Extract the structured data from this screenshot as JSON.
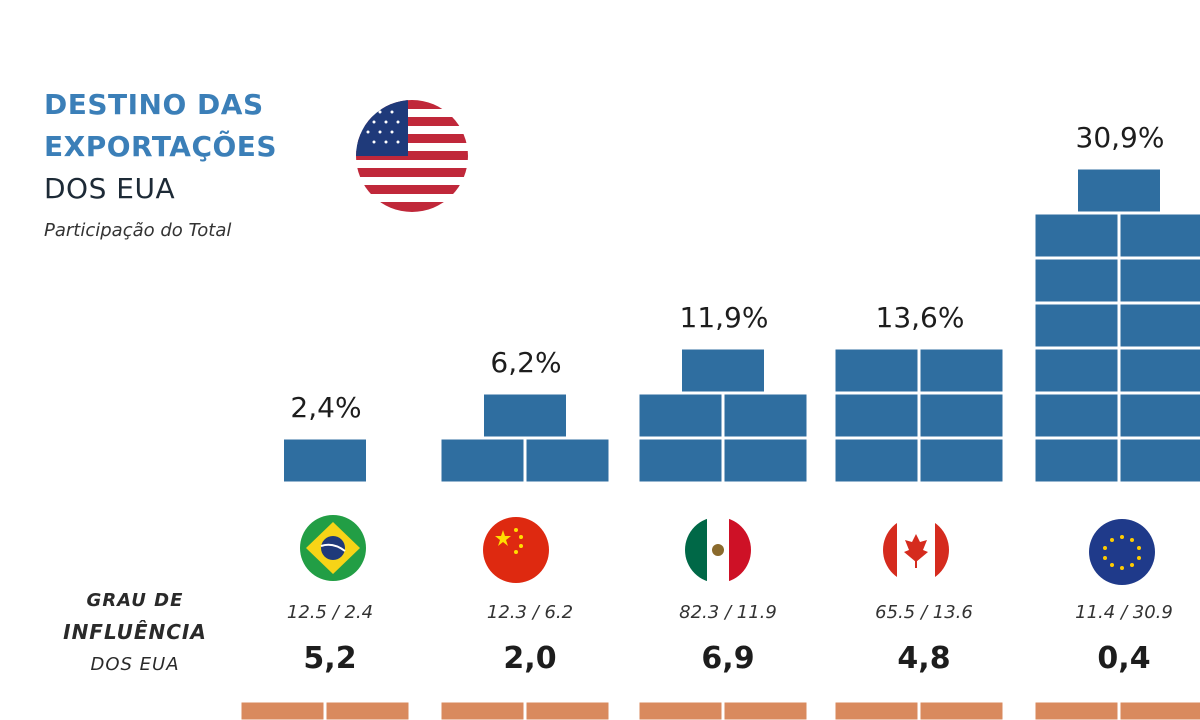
{
  "header": {
    "title_line1": "DESTINO DAS",
    "title_line2": "EXPORTAÇÕES",
    "title_line3": "DOS EUA",
    "subtitle": "Participação do Total"
  },
  "legend": {
    "line1": "GRAU DE",
    "line2": "INFLUÊNCIA",
    "line3": "DOS EUA"
  },
  "colors": {
    "block": "#2f6ea0",
    "block_stroke": "#ffffff",
    "bottom_block": "#d98a5e",
    "label_text": "#1d1d1d"
  },
  "chart_data": {
    "type": "bar",
    "title": "DESTINO DAS EXPORTAÇÕES DOS EUA",
    "subtitle": "Participação do Total",
    "categories": [
      "brazil-flag",
      "china-flag",
      "mexico-flag",
      "canada-flag",
      "eu-flag"
    ],
    "values": [
      2.4,
      6.2,
      11.9,
      13.6,
      30.9
    ],
    "value_labels": [
      "2,4%",
      "6,2%",
      "11,9%",
      "13,6%",
      "30,9%"
    ],
    "ratio_labels": [
      "12.5 / 2.4",
      "12.3 / 6.2",
      "82.3 / 11.9",
      "65.5 / 13.6",
      "11.4 / 30.9"
    ],
    "influence_values": [
      5.2,
      2.0,
      6.9,
      4.8,
      0.4
    ],
    "influence_labels": [
      "5,2",
      "2,0",
      "6,9",
      "4,8",
      "0,4"
    ]
  }
}
